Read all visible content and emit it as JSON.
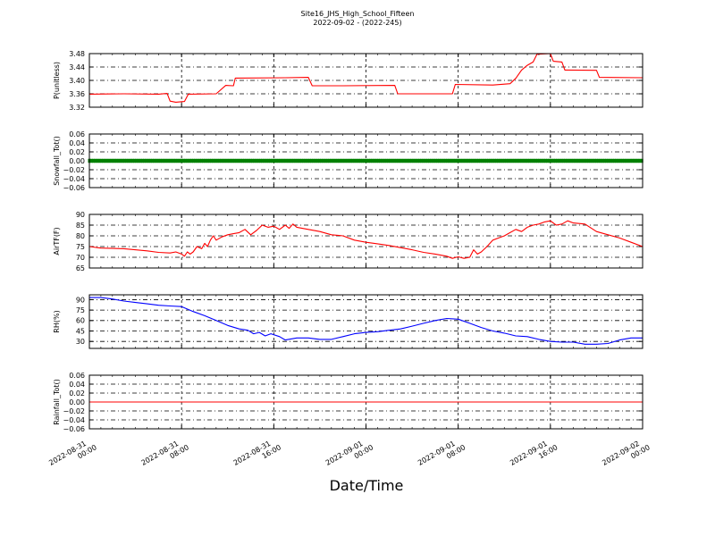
{
  "chart_data": {
    "type": "line",
    "title": "Site16_JHS_High_School_Fifteen",
    "subtitle": "2022-09-02 - (2022-245)",
    "xlabel": "Date/Time",
    "x_ticks": [
      {
        "line1": "2022-08-31",
        "line2": "00:00"
      },
      {
        "line1": "2022-08-31",
        "line2": "08:00"
      },
      {
        "line1": "2022-08-31",
        "line2": "16:00"
      },
      {
        "line1": "2022-09-01",
        "line2": "00:00"
      },
      {
        "line1": "2022-09-01",
        "line2": "08:00"
      },
      {
        "line1": "2022-09-01",
        "line2": "16:00"
      },
      {
        "line1": "2022-09-02",
        "line2": "00:00"
      }
    ],
    "x_range": [
      "2022-08-31 00:00",
      "2022-09-02 00:00"
    ],
    "grid": true,
    "panels": [
      {
        "ylabel": "P(unitless)",
        "ylim": [
          3.32,
          3.48
        ],
        "yticks": [
          "3.32",
          "3.36",
          "3.40",
          "3.44",
          "3.48"
        ],
        "series": [
          {
            "color": "#ff0000",
            "points": [
              [
                "2022-08-31 00:00",
                3.359
              ],
              [
                "2022-08-31 03:00",
                3.36
              ],
              [
                "2022-08-31 06:00",
                3.359
              ],
              [
                "2022-08-31 06:45",
                3.361
              ],
              [
                "2022-08-31 07:00",
                3.338
              ],
              [
                "2022-08-31 07:30",
                3.335
              ],
              [
                "2022-08-31 08:15",
                3.337
              ],
              [
                "2022-08-31 08:35",
                3.359
              ],
              [
                "2022-08-31 11:00",
                3.36
              ],
              [
                "2022-08-31 11:50",
                3.385
              ],
              [
                "2022-08-31 12:30",
                3.384
              ],
              [
                "2022-08-31 12:40",
                3.407
              ],
              [
                "2022-08-31 17:00",
                3.408
              ],
              [
                "2022-08-31 19:00",
                3.409
              ],
              [
                "2022-08-31 19:20",
                3.384
              ],
              [
                "2022-08-31 22:00",
                3.384
              ],
              [
                "2022-09-01 02:30",
                3.385
              ],
              [
                "2022-09-01 02:45",
                3.36
              ],
              [
                "2022-09-01 07:30",
                3.36
              ],
              [
                "2022-09-01 07:45",
                3.388
              ],
              [
                "2022-09-01 11:00",
                3.386
              ],
              [
                "2022-09-01 12:30",
                3.39
              ],
              [
                "2022-09-01 13:00",
                3.406
              ],
              [
                "2022-09-01 13:30",
                3.431
              ],
              [
                "2022-09-01 14:00",
                3.445
              ],
              [
                "2022-09-01 14:30",
                3.455
              ],
              [
                "2022-09-01 14:50",
                3.478
              ],
              [
                "2022-09-01 16:00",
                3.48
              ],
              [
                "2022-09-01 16:15",
                3.457
              ],
              [
                "2022-09-01 17:00",
                3.455
              ],
              [
                "2022-09-01 17:15",
                3.431
              ],
              [
                "2022-09-01 20:00",
                3.43
              ],
              [
                "2022-09-01 20:15",
                3.409
              ],
              [
                "2022-09-02 00:00",
                3.408
              ]
            ]
          }
        ]
      },
      {
        "ylabel": "Snowfall_Tot()",
        "ylim": [
          -0.06,
          0.06
        ],
        "yticks": [
          "−0.06",
          "−0.04",
          "−0.02",
          "0.00",
          "0.02",
          "0.04",
          "0.06"
        ],
        "series": [
          {
            "color": "#008000",
            "marker": true,
            "points": [
              [
                "2022-08-31 00:00",
                0.0
              ],
              [
                "2022-09-02 00:00",
                0.0
              ]
            ]
          }
        ]
      },
      {
        "ylabel": "AirTF(F)",
        "ylim": [
          65,
          90
        ],
        "yticks": [
          "65",
          "70",
          "75",
          "80",
          "85",
          "90"
        ],
        "series": [
          {
            "color": "#ff0000",
            "points": [
              [
                "2022-08-31 00:00",
                75
              ],
              [
                "2022-08-31 01:00",
                74.3
              ],
              [
                "2022-08-31 03:00",
                74
              ],
              [
                "2022-08-31 05:00",
                73
              ],
              [
                "2022-08-31 06:00",
                72.3
              ],
              [
                "2022-08-31 07:00",
                72
              ],
              [
                "2022-08-31 07:30",
                72.5
              ],
              [
                "2022-08-31 08:00",
                71.5
              ],
              [
                "2022-08-31 08:15",
                70.5
              ],
              [
                "2022-08-31 08:30",
                72.5
              ],
              [
                "2022-08-31 08:45",
                71.5
              ],
              [
                "2022-08-31 09:00",
                72.5
              ],
              [
                "2022-08-31 09:20",
                75
              ],
              [
                "2022-08-31 09:45",
                74
              ],
              [
                "2022-08-31 10:00",
                76.5
              ],
              [
                "2022-08-31 10:15",
                75
              ],
              [
                "2022-08-31 10:30",
                78
              ],
              [
                "2022-08-31 10:45",
                80
              ],
              [
                "2022-08-31 11:00",
                78
              ],
              [
                "2022-08-31 11:30",
                79.5
              ],
              [
                "2022-08-31 12:00",
                80.5
              ],
              [
                "2022-08-31 12:30",
                81
              ],
              [
                "2022-08-31 13:00",
                81.5
              ],
              [
                "2022-08-31 13:30",
                83
              ],
              [
                "2022-08-31 14:00",
                80.5
              ],
              [
                "2022-08-31 14:30",
                82.5
              ],
              [
                "2022-08-31 15:00",
                85
              ],
              [
                "2022-08-31 15:30",
                84
              ],
              [
                "2022-08-31 16:00",
                84.5
              ],
              [
                "2022-08-31 16:30",
                83
              ],
              [
                "2022-08-31 17:00",
                85
              ],
              [
                "2022-08-31 17:20",
                83.5
              ],
              [
                "2022-08-31 17:40",
                85.5
              ],
              [
                "2022-08-31 18:00",
                84
              ],
              [
                "2022-08-31 19:00",
                83
              ],
              [
                "2022-08-31 20:00",
                82
              ],
              [
                "2022-08-31 21:00",
                80.5
              ],
              [
                "2022-08-31 22:00",
                80
              ],
              [
                "2022-08-31 23:00",
                78
              ],
              [
                "2022-09-01 00:00",
                77
              ],
              [
                "2022-09-01 01:00",
                76.3
              ],
              [
                "2022-09-01 02:00",
                75.5
              ],
              [
                "2022-09-01 03:00",
                74.5
              ],
              [
                "2022-09-01 04:00",
                73.5
              ],
              [
                "2022-09-01 05:00",
                72.3
              ],
              [
                "2022-09-01 06:00",
                71.5
              ],
              [
                "2022-09-01 07:00",
                70.5
              ],
              [
                "2022-09-01 07:30",
                69.5
              ],
              [
                "2022-09-01 08:00",
                70.2
              ],
              [
                "2022-09-01 08:30",
                69.5
              ],
              [
                "2022-09-01 09:00",
                70
              ],
              [
                "2022-09-01 09:20",
                73.5
              ],
              [
                "2022-09-01 09:40",
                71.5
              ],
              [
                "2022-09-01 10:00",
                72.5
              ],
              [
                "2022-09-01 10:30",
                75
              ],
              [
                "2022-09-01 11:00",
                78
              ],
              [
                "2022-09-01 11:30",
                79
              ],
              [
                "2022-09-01 12:00",
                80
              ],
              [
                "2022-09-01 12:30",
                81.5
              ],
              [
                "2022-09-01 13:00",
                83
              ],
              [
                "2022-09-01 13:30",
                82
              ],
              [
                "2022-09-01 14:00",
                84
              ],
              [
                "2022-09-01 14:30",
                85
              ],
              [
                "2022-09-01 15:00",
                85.5
              ],
              [
                "2022-09-01 15:30",
                86.5
              ],
              [
                "2022-09-01 16:00",
                87
              ],
              [
                "2022-09-01 16:30",
                85
              ],
              [
                "2022-09-01 17:00",
                85.5
              ],
              [
                "2022-09-01 17:30",
                87
              ],
              [
                "2022-09-01 18:00",
                86
              ],
              [
                "2022-09-01 19:00",
                85.5
              ],
              [
                "2022-09-01 20:00",
                82
              ],
              [
                "2022-09-01 21:00",
                80.5
              ],
              [
                "2022-09-01 22:00",
                79
              ],
              [
                "2022-09-01 23:00",
                77
              ],
              [
                "2022-09-02 00:00",
                75
              ]
            ]
          }
        ]
      },
      {
        "ylabel": "RH(%)",
        "ylim": [
          20,
          97
        ],
        "yticks": [
          "30",
          "45",
          "60",
          "75",
          "90"
        ],
        "series": [
          {
            "color": "#0000ff",
            "points": [
              [
                "2022-08-31 00:00",
                93
              ],
              [
                "2022-08-31 01:00",
                93
              ],
              [
                "2022-08-31 02:00",
                91
              ],
              [
                "2022-08-31 03:00",
                88
              ],
              [
                "2022-08-31 04:00",
                86
              ],
              [
                "2022-08-31 05:00",
                84
              ],
              [
                "2022-08-31 06:00",
                82
              ],
              [
                "2022-08-31 07:00",
                81
              ],
              [
                "2022-08-31 08:00",
                80
              ],
              [
                "2022-08-31 09:00",
                73
              ],
              [
                "2022-08-31 10:00",
                67
              ],
              [
                "2022-08-31 11:00",
                60
              ],
              [
                "2022-08-31 12:00",
                53
              ],
              [
                "2022-08-31 13:00",
                48
              ],
              [
                "2022-08-31 13:45",
                46
              ],
              [
                "2022-08-31 14:15",
                41
              ],
              [
                "2022-08-31 14:45",
                43
              ],
              [
                "2022-08-31 15:15",
                38
              ],
              [
                "2022-08-31 15:45",
                41
              ],
              [
                "2022-08-31 16:30",
                37
              ],
              [
                "2022-08-31 17:00",
                32
              ],
              [
                "2022-08-31 18:00",
                35
              ],
              [
                "2022-08-31 19:00",
                35
              ],
              [
                "2022-08-31 20:00",
                33
              ],
              [
                "2022-08-31 21:00",
                33
              ],
              [
                "2022-08-31 22:00",
                37
              ],
              [
                "2022-08-31 23:00",
                41
              ],
              [
                "2022-09-01 00:00",
                43
              ],
              [
                "2022-09-01 01:00",
                44
              ],
              [
                "2022-09-01 02:00",
                46
              ],
              [
                "2022-09-01 03:00",
                48
              ],
              [
                "2022-09-01 04:00",
                52
              ],
              [
                "2022-09-01 05:00",
                56
              ],
              [
                "2022-09-01 06:00",
                60
              ],
              [
                "2022-09-01 07:00",
                63
              ],
              [
                "2022-09-01 08:00",
                62
              ],
              [
                "2022-09-01 09:00",
                56
              ],
              [
                "2022-09-01 10:00",
                50
              ],
              [
                "2022-09-01 11:00",
                45
              ],
              [
                "2022-09-01 12:00",
                42
              ],
              [
                "2022-09-01 13:00",
                38
              ],
              [
                "2022-09-01 14:00",
                37
              ],
              [
                "2022-09-01 15:00",
                33
              ],
              [
                "2022-09-01 16:00",
                30
              ],
              [
                "2022-09-01 17:00",
                29
              ],
              [
                "2022-09-01 18:00",
                29
              ],
              [
                "2022-09-01 19:00",
                26
              ],
              [
                "2022-09-01 20:00",
                26
              ],
              [
                "2022-09-01 21:00",
                27
              ],
              [
                "2022-09-01 22:00",
                32
              ],
              [
                "2022-09-01 23:00",
                35
              ],
              [
                "2022-09-02 00:00",
                35
              ]
            ]
          }
        ]
      },
      {
        "ylabel": "Rainfall_Tot()",
        "ylim": [
          -0.06,
          0.06
        ],
        "yticks": [
          "−0.06",
          "−0.04",
          "−0.02",
          "0.00",
          "0.02",
          "0.04",
          "0.06"
        ],
        "series": [
          {
            "color": "#ff0000",
            "points": [
              [
                "2022-08-31 00:00",
                0.0
              ],
              [
                "2022-09-02 00:00",
                0.0
              ]
            ]
          }
        ]
      }
    ]
  }
}
